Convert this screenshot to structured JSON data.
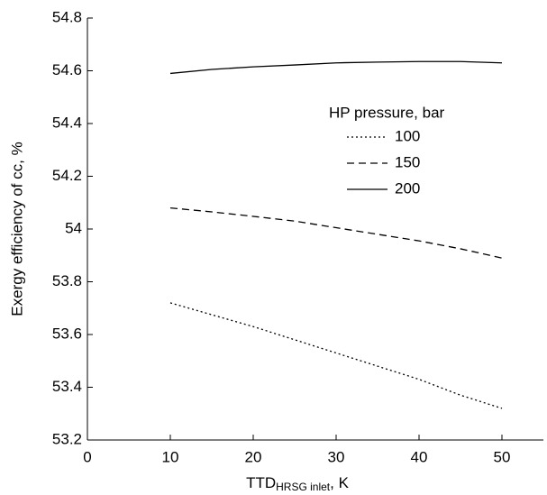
{
  "chart_data": {
    "type": "line",
    "x_label": "TTD",
    "x_label_sub": "HRSG inlet",
    "x_label_suffix": ", K",
    "y_label": "Exergy efficiency of cc, %",
    "legend_title": "HP pressure, bar",
    "x": [
      10,
      15,
      20,
      25,
      30,
      35,
      40,
      45,
      50
    ],
    "series": [
      {
        "name": "100",
        "color": "#000000",
        "dash": "dotted",
        "values": [
          53.72,
          53.675,
          53.63,
          53.58,
          53.53,
          53.48,
          53.43,
          53.37,
          53.32
        ]
      },
      {
        "name": "150",
        "color": "#000000",
        "dash": "dashed",
        "values": [
          54.08,
          54.065,
          54.048,
          54.03,
          54.005,
          53.98,
          53.955,
          53.925,
          53.89
        ]
      },
      {
        "name": "200",
        "color": "#000000",
        "dash": "solid",
        "values": [
          54.59,
          54.605,
          54.615,
          54.622,
          54.63,
          54.633,
          54.635,
          54.635,
          54.63
        ]
      }
    ],
    "xlim": [
      0,
      55
    ],
    "xticks": [
      0,
      10,
      20,
      30,
      40,
      50
    ],
    "ylim": [
      53.2,
      54.8
    ],
    "yticks": [
      53.2,
      53.4,
      53.6,
      53.8,
      54,
      54.2,
      54.4,
      54.6,
      54.8
    ]
  }
}
